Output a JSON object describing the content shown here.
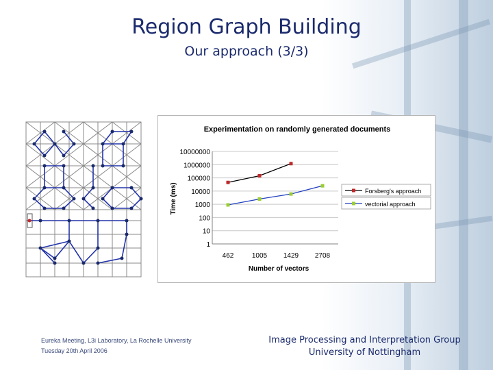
{
  "slide": {
    "title": "Region Graph Building",
    "subtitle": "Our approach (3/3)"
  },
  "footer": {
    "left_line1": "Eureka Meeting, L3i Laboratory, La Rochelle University",
    "left_line2": "Tuesday 20th April 2006",
    "right_line1": "Image Processing and Interpretation Group",
    "right_line2": "University of Nottingham"
  },
  "chart_data": {
    "type": "line",
    "title": "Experimentation on randomly generated documents",
    "xlabel": "Number of vectors",
    "ylabel": "Time (ms)",
    "categories": [
      "462",
      "1005",
      "1429",
      "2708"
    ],
    "yscale": "log",
    "ylim": [
      1,
      10000000
    ],
    "yticks": [
      "10000000",
      "1000000",
      "100000",
      "10000",
      "1000",
      "100",
      "10",
      "1"
    ],
    "grid": true,
    "legend_position": "right",
    "series": [
      {
        "name": "Forsberg's approach",
        "color": "#c0282a",
        "line_color": "#000000",
        "values": [
          45000,
          145000,
          1200000,
          null
        ]
      },
      {
        "name": "vectorial approach",
        "color": "#9acd32",
        "line_color": "#1f3fbf",
        "values": [
          900,
          2500,
          6000,
          25000
        ]
      }
    ]
  }
}
